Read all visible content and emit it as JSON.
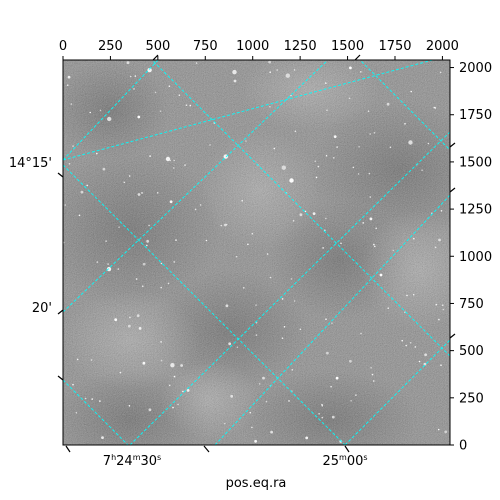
{
  "chart_data": {
    "type": "image",
    "title": "",
    "xlabel": "pos.eq.ra",
    "ylabel": "",
    "pixel_axes": {
      "x": {
        "ticks": [
          0,
          250,
          500,
          750,
          1000,
          1250,
          1500,
          1750,
          2000
        ],
        "tick_labels": [
          "0",
          "250",
          "500",
          "750",
          "1000",
          "1250",
          "1500",
          "1750",
          "2000"
        ],
        "range": [
          0,
          2040
        ],
        "position": "top"
      },
      "y": {
        "ticks": [
          0,
          250,
          500,
          750,
          1000,
          1250,
          1500,
          1750,
          2000
        ],
        "tick_labels": [
          "0",
          "250",
          "500",
          "750",
          "1000",
          "1250",
          "1500",
          "1750",
          "2000"
        ],
        "range": [
          0,
          2040
        ],
        "position": "right"
      }
    },
    "world_axes": {
      "ra_labels": [
        {
          "text": "7h24m30s",
          "parts": [
            "7",
            "h",
            "24",
            "m",
            "30",
            "s"
          ]
        },
        {
          "text": "25m00s",
          "parts": [
            "25",
            "m",
            "00",
            "s"
          ]
        }
      ],
      "dec_labels": [
        "14°15'",
        "20'"
      ]
    },
    "grid": {
      "on": true,
      "color": "#00ffff",
      "style": "dashed"
    },
    "colormap": "gray"
  }
}
